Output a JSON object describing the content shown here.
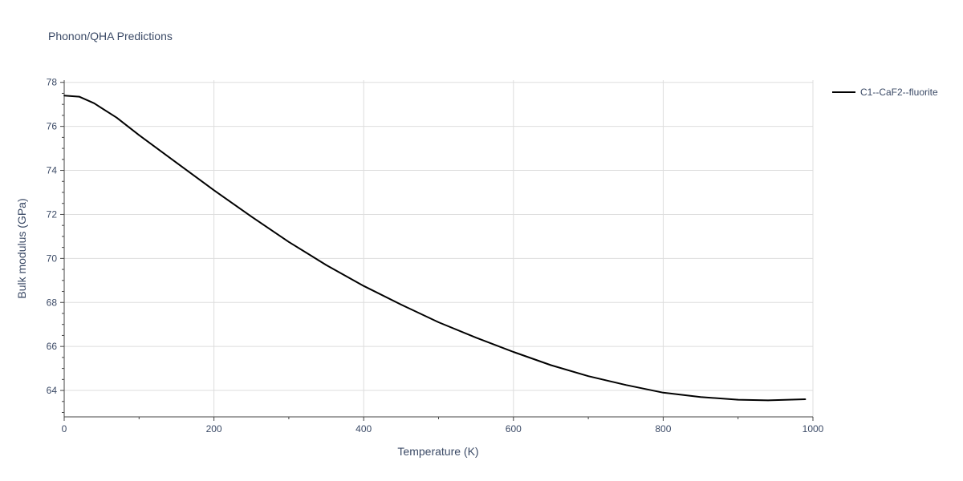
{
  "chart_data": {
    "type": "line",
    "title": "Phonon/QHA Predictions",
    "xlabel": "Temperature (K)",
    "ylabel": "Bulk modulus (GPa)",
    "xlim": [
      0,
      1000
    ],
    "ylim": [
      62.8,
      78.1
    ],
    "x_ticks": [
      0,
      200,
      400,
      600,
      800,
      1000
    ],
    "y_ticks": [
      64,
      66,
      68,
      70,
      72,
      74,
      76,
      78
    ],
    "grid": true,
    "legend_position": "top-right",
    "series": [
      {
        "name": "C1--CaF2--fluorite",
        "color": "#000000",
        "x": [
          0,
          20,
          40,
          70,
          100,
          150,
          200,
          250,
          300,
          350,
          400,
          450,
          500,
          550,
          600,
          650,
          700,
          750,
          800,
          850,
          900,
          940,
          990
        ],
        "y": [
          77.4,
          77.35,
          77.05,
          76.4,
          75.6,
          74.35,
          73.1,
          71.9,
          70.75,
          69.7,
          68.75,
          67.9,
          67.1,
          66.4,
          65.75,
          65.15,
          64.65,
          64.25,
          63.9,
          63.7,
          63.58,
          63.55,
          63.6
        ]
      }
    ]
  }
}
